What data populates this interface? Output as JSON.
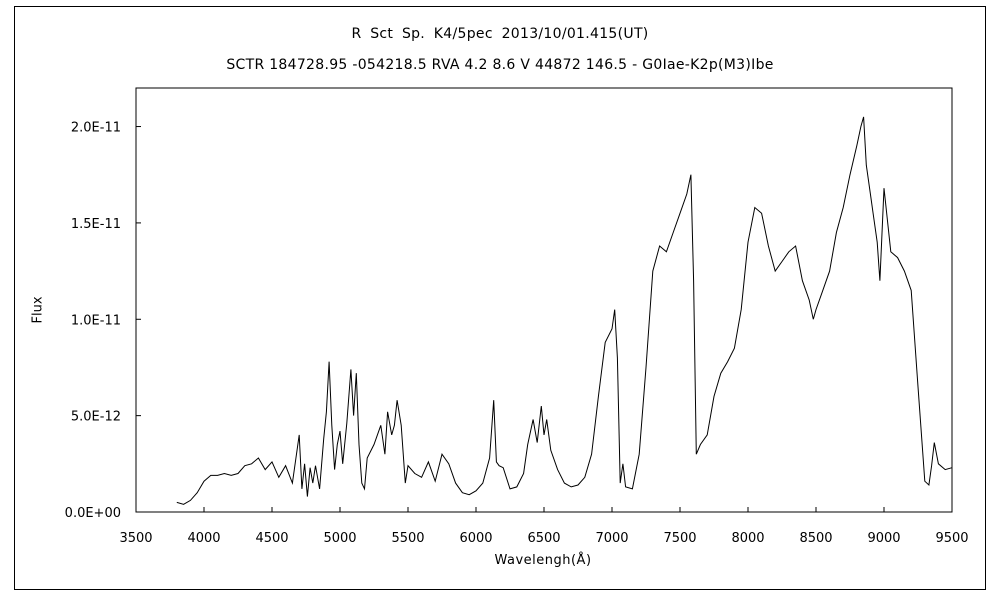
{
  "title_line1": "R Sct    Sp. K4/5pec    2013/10/01.415(UT)",
  "title_line2": "SCTR 184728.95 -054218.5 RVA 4.2 8.6 V 44872 146.5 - G0Iae-K2p(M3)Ibe",
  "chart_data": {
    "type": "line",
    "title": "R Sct    Sp. K4/5pec    2013/10/01.415(UT)",
    "subtitle": "SCTR 184728.95 -054218.5 RVA 4.2 8.6 V 44872 146.5 - G0Iae-K2p(M3)Ibe",
    "xlabel": "Wavelengh(Å)",
    "ylabel": "Flux",
    "xlim": [
      3500,
      9500
    ],
    "ylim": [
      0,
      2.2e-11
    ],
    "x_ticks": [
      "3500",
      "4000",
      "4500",
      "5000",
      "5500",
      "6000",
      "6500",
      "7000",
      "7500",
      "8000",
      "8500",
      "9000",
      "9500"
    ],
    "y_ticks": [
      "0.0E+00",
      "5.0E-12",
      "1.0E-11",
      "1.5E-11",
      "2.0E-11"
    ],
    "grid": false,
    "series": [
      {
        "color": "#000000",
        "x": [
          3800,
          3850,
          3900,
          3950,
          4000,
          4050,
          4100,
          4150,
          4200,
          4250,
          4300,
          4350,
          4400,
          4450,
          4500,
          4550,
          4600,
          4650,
          4700,
          4720,
          4740,
          4760,
          4780,
          4800,
          4820,
          4850,
          4880,
          4900,
          4920,
          4940,
          4960,
          4980,
          5000,
          5020,
          5050,
          5080,
          5100,
          5120,
          5140,
          5160,
          5180,
          5200,
          5250,
          5300,
          5330,
          5350,
          5380,
          5400,
          5420,
          5450,
          5480,
          5500,
          5550,
          5600,
          5650,
          5700,
          5750,
          5800,
          5850,
          5900,
          5950,
          6000,
          6050,
          6100,
          6130,
          6150,
          6170,
          6200,
          6250,
          6300,
          6350,
          6380,
          6420,
          6450,
          6480,
          6500,
          6520,
          6550,
          6600,
          6650,
          6700,
          6750,
          6800,
          6850,
          6900,
          6950,
          7000,
          7020,
          7040,
          7060,
          7080,
          7100,
          7150,
          7200,
          7250,
          7300,
          7350,
          7400,
          7450,
          7500,
          7550,
          7580,
          7600,
          7620,
          7650,
          7700,
          7750,
          7800,
          7850,
          7900,
          7950,
          8000,
          8050,
          8100,
          8150,
          8200,
          8250,
          8300,
          8350,
          8400,
          8450,
          8480,
          8500,
          8550,
          8600,
          8650,
          8700,
          8750,
          8800,
          8830,
          8850,
          8870,
          8900,
          8920,
          8950,
          8970,
          9000,
          9050,
          9100,
          9150,
          9200,
          9250,
          9300,
          9330,
          9350,
          9370,
          9400,
          9450,
          9500
        ],
        "y": [
          5e-13,
          4e-13,
          6e-13,
          1e-12,
          1.6e-12,
          1.9e-12,
          1.9e-12,
          2e-12,
          1.9e-12,
          2e-12,
          2.4e-12,
          2.5e-12,
          2.8e-12,
          2.2e-12,
          2.6e-12,
          1.8e-12,
          2.4e-12,
          1.5e-12,
          4e-12,
          1.2e-12,
          2.5e-12,
          8e-13,
          2.3e-12,
          1.5e-12,
          2.4e-12,
          1.2e-12,
          3.8e-12,
          5.2e-12,
          7.8e-12,
          4.5e-12,
          2.2e-12,
          3.5e-12,
          4.2e-12,
          2.5e-12,
          4.6e-12,
          7.4e-12,
          5e-12,
          7.2e-12,
          3.5e-12,
          1.5e-12,
          1.2e-12,
          2.8e-12,
          3.5e-12,
          4.5e-12,
          3e-12,
          5.2e-12,
          4e-12,
          4.5e-12,
          5.8e-12,
          4.5e-12,
          1.5e-12,
          2.4e-12,
          2e-12,
          1.8e-12,
          2.6e-12,
          1.6e-12,
          3e-12,
          2.5e-12,
          1.5e-12,
          1e-12,
          9e-13,
          1.1e-12,
          1.5e-12,
          2.8e-12,
          5.8e-12,
          2.6e-12,
          2.4e-12,
          2.3e-12,
          1.2e-12,
          1.3e-12,
          2e-12,
          3.5e-12,
          4.8e-12,
          3.6e-12,
          5.5e-12,
          4e-12,
          4.8e-12,
          3.2e-12,
          2.2e-12,
          1.5e-12,
          1.3e-12,
          1.4e-12,
          1.8e-12,
          3e-12,
          6e-12,
          8.8e-12,
          9.5e-12,
          1.05e-11,
          8e-12,
          1.5e-12,
          2.5e-12,
          1.3e-12,
          1.2e-12,
          3e-12,
          7.5e-12,
          1.25e-11,
          1.38e-11,
          1.35e-11,
          1.45e-11,
          1.55e-11,
          1.65e-11,
          1.75e-11,
          1.2e-11,
          3e-12,
          3.5e-12,
          4e-12,
          6e-12,
          7.2e-12,
          7.8e-12,
          8.5e-12,
          1.05e-11,
          1.4e-11,
          1.58e-11,
          1.55e-11,
          1.38e-11,
          1.25e-11,
          1.3e-11,
          1.35e-11,
          1.38e-11,
          1.2e-11,
          1.1e-11,
          1e-11,
          1.05e-11,
          1.15e-11,
          1.25e-11,
          1.45e-11,
          1.58e-11,
          1.75e-11,
          1.9e-11,
          2e-11,
          2.05e-11,
          1.8e-11,
          1.65e-11,
          1.55e-11,
          1.4e-11,
          1.2e-11,
          1.68e-11,
          1.35e-11,
          1.32e-11,
          1.25e-11,
          1.15e-11,
          6.5e-12,
          1.6e-12,
          1.4e-12,
          2.4e-12,
          3.6e-12,
          2.5e-12,
          2.2e-12,
          2.3e-12
        ]
      }
    ]
  }
}
